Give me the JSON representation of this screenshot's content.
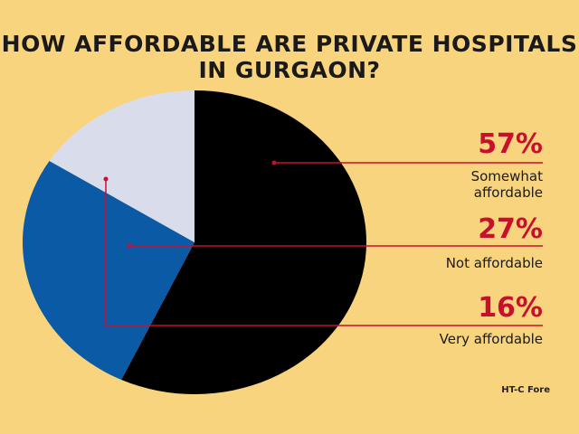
{
  "chart_data": {
    "type": "pie",
    "title": "HOW AFFORDABLE ARE PRIVATE HOSPITALS IN GURGAON?",
    "slices": [
      {
        "label": "Somewhat affordable",
        "value": 57,
        "display": "57%",
        "color": "#000000"
      },
      {
        "label": "Not affordable",
        "value": 27,
        "display": "27%",
        "color": "#0b5aa6"
      },
      {
        "label": "Very affordable",
        "value": 16,
        "display": "16%",
        "color": "#d9dcea"
      }
    ],
    "leader_color": "#c8102e",
    "source": "HT-C Fore"
  }
}
